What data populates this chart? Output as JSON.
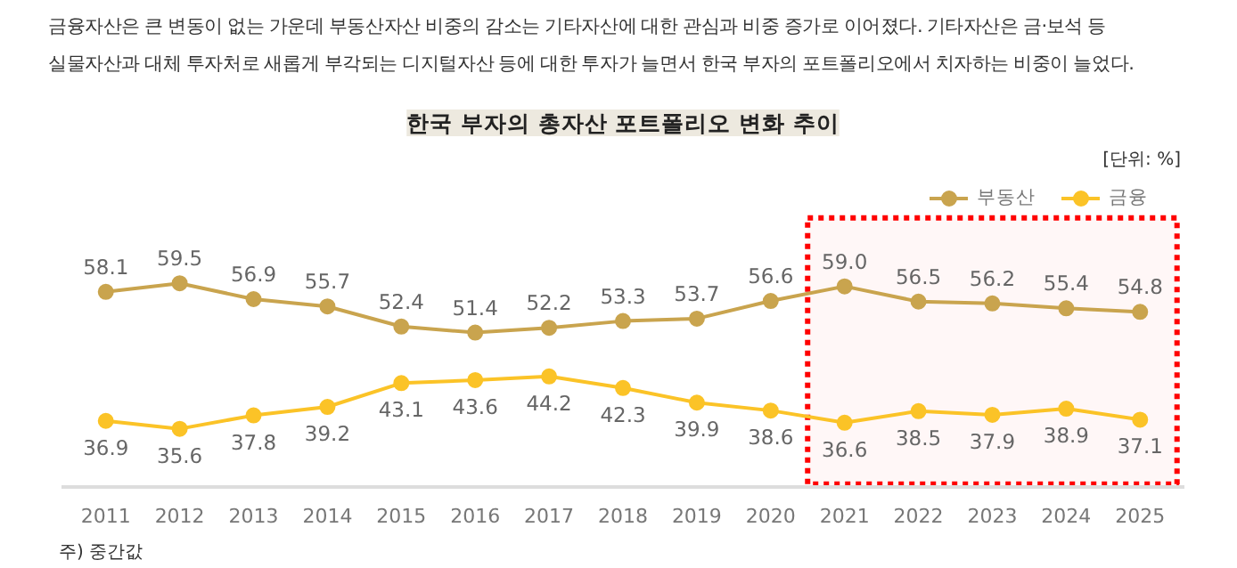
{
  "chart_data": {
    "type": "line",
    "title": "한국 부자의 총자산 포트폴리오 변화 추이",
    "annotations": [
      "금융자산은 큰 변동이 없는 가운데 부동산자산 비중의 감소는 기타자산에 대한 관심과 비중 증가로 이어졌다. 기타자산은 금·보석 등",
      "실물자산과 대체 투자처로 새롭게 부각되는 디지털자산 등에 대한 투자가 늘면서 한국 부자의 포트폴리오에서 치자하는 비중이 늘었다.",
      "[단위: %]",
      "주) 중간값"
    ],
    "categories": [
      "2011",
      "2012",
      "2013",
      "2014",
      "2015",
      "2016",
      "2017",
      "2018",
      "2019",
      "2020",
      "2021",
      "2022",
      "2023",
      "2024",
      "2025"
    ],
    "series": [
      {
        "name": "부동산",
        "color": "#c9a44e",
        "values": [
          58.1,
          59.5,
          56.9,
          55.7,
          52.4,
          51.4,
          52.2,
          53.3,
          53.7,
          56.6,
          59.0,
          56.5,
          56.2,
          55.4,
          54.8
        ],
        "value_labels": [
          "58.1",
          "59.5",
          "56.9",
          "55.7",
          "52.4",
          "51.4",
          "52.2",
          "53.3",
          "53.7",
          "56.6",
          "59.0",
          "56.5",
          "56.2",
          "55.4",
          "54.8"
        ]
      },
      {
        "name": "금융",
        "color": "#fbc327",
        "values": [
          36.9,
          35.6,
          37.8,
          39.2,
          43.1,
          43.6,
          44.2,
          42.3,
          39.9,
          38.6,
          36.6,
          38.5,
          37.9,
          38.9,
          37.1
        ],
        "value_labels": [
          "36.9",
          "35.6",
          "37.8",
          "39.2",
          "43.1",
          "43.6",
          "44.2",
          "42.3",
          "39.9",
          "38.6",
          "36.6",
          "38.5",
          "37.9",
          "38.9",
          "37.1"
        ]
      }
    ],
    "legend": "top right",
    "marker": "circle",
    "line_style": "solid",
    "bands": [
      {
        "axis": "x",
        "from": "2021",
        "to": "2025",
        "color": "#ff0000"
      }
    ]
  }
}
